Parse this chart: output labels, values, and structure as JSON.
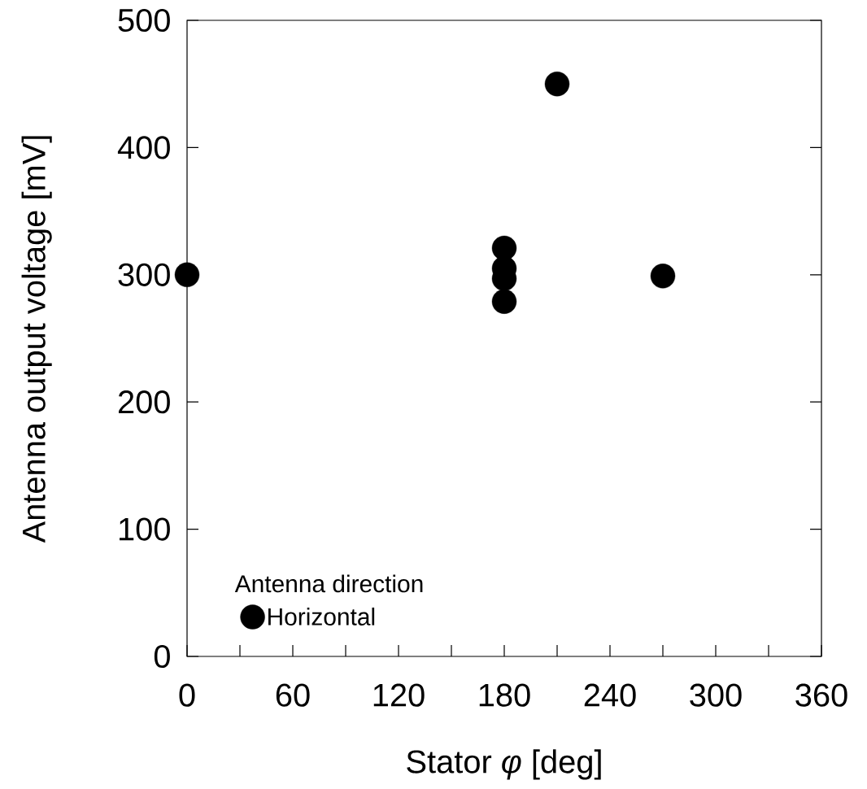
{
  "chart_data": {
    "type": "scatter",
    "xlabel": "Stator *φ* [deg]",
    "ylabel": "Antenna output voltage [mV]",
    "legend_title": "Antenna direction",
    "series": [
      {
        "name": "Horizontal",
        "color": "#000000",
        "x": [
          0,
          180,
          180,
          180,
          180,
          210,
          270
        ],
        "values": [
          300,
          321,
          305,
          297,
          279,
          450,
          299
        ]
      }
    ],
    "xlim": [
      0,
      360
    ],
    "ylim": [
      0,
      500
    ],
    "xticks": [
      0,
      {
        "value": 30,
        "label": null
      },
      60,
      {
        "value": 90,
        "label": null
      },
      120,
      {
        "value": 150,
        "label": null
      },
      180,
      {
        "value": 210,
        "label": null
      },
      240,
      {
        "value": 270,
        "label": null
      },
      300,
      {
        "value": 330,
        "label": null
      },
      360
    ],
    "yticks": [
      0,
      100,
      200,
      300,
      400,
      500
    ],
    "marker": "circle",
    "grid": false,
    "legend": "bottom left"
  }
}
